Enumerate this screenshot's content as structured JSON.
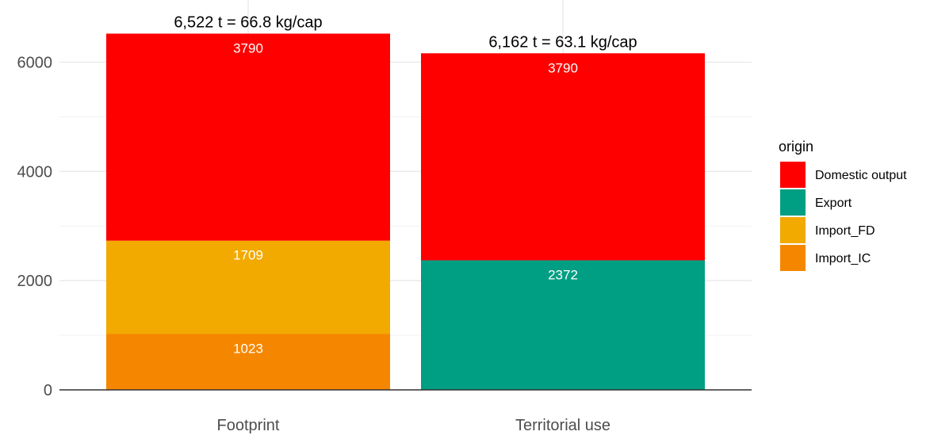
{
  "chart_data": {
    "type": "bar",
    "stacked": true,
    "categories": [
      "Footprint",
      "Territorial use"
    ],
    "series": [
      {
        "name": "Import_IC",
        "values": [
          1023,
          0
        ],
        "color": "#f58700"
      },
      {
        "name": "Import_FD",
        "values": [
          1709,
          0
        ],
        "color": "#f2a900"
      },
      {
        "name": "Export",
        "values": [
          0,
          2372
        ],
        "color": "#009e82"
      },
      {
        "name": "Domestic output",
        "values": [
          3790,
          3790
        ],
        "color": "#ff0000"
      }
    ],
    "segment_labels": [
      {
        "category": "Footprint",
        "series": "Import_IC",
        "text": "1023"
      },
      {
        "category": "Footprint",
        "series": "Import_FD",
        "text": "1709"
      },
      {
        "category": "Footprint",
        "series": "Domestic output",
        "text": "3790"
      },
      {
        "category": "Territorial use",
        "series": "Export",
        "text": "2372"
      },
      {
        "category": "Territorial use",
        "series": "Domestic output",
        "text": "3790"
      }
    ],
    "totals": [
      {
        "category": "Footprint",
        "value": 6522,
        "text": "6,522 t = 66.8 kg/cap"
      },
      {
        "category": "Territorial use",
        "value": 6162,
        "text": "6,162 t = 63.1 kg/cap"
      }
    ],
    "yticks": [
      0,
      2000,
      4000,
      6000
    ],
    "ylim": [
      0,
      6522
    ],
    "grid": true,
    "legend": {
      "title": "origin",
      "position": "right",
      "entries": [
        "Domestic output",
        "Export",
        "Import_FD",
        "Import_IC"
      ]
    },
    "title": "",
    "xlabel": "",
    "ylabel": ""
  },
  "colors": {
    "Domestic output": "#ff0000",
    "Export": "#009e82",
    "Import_FD": "#f2a900",
    "Import_IC": "#f58700"
  }
}
